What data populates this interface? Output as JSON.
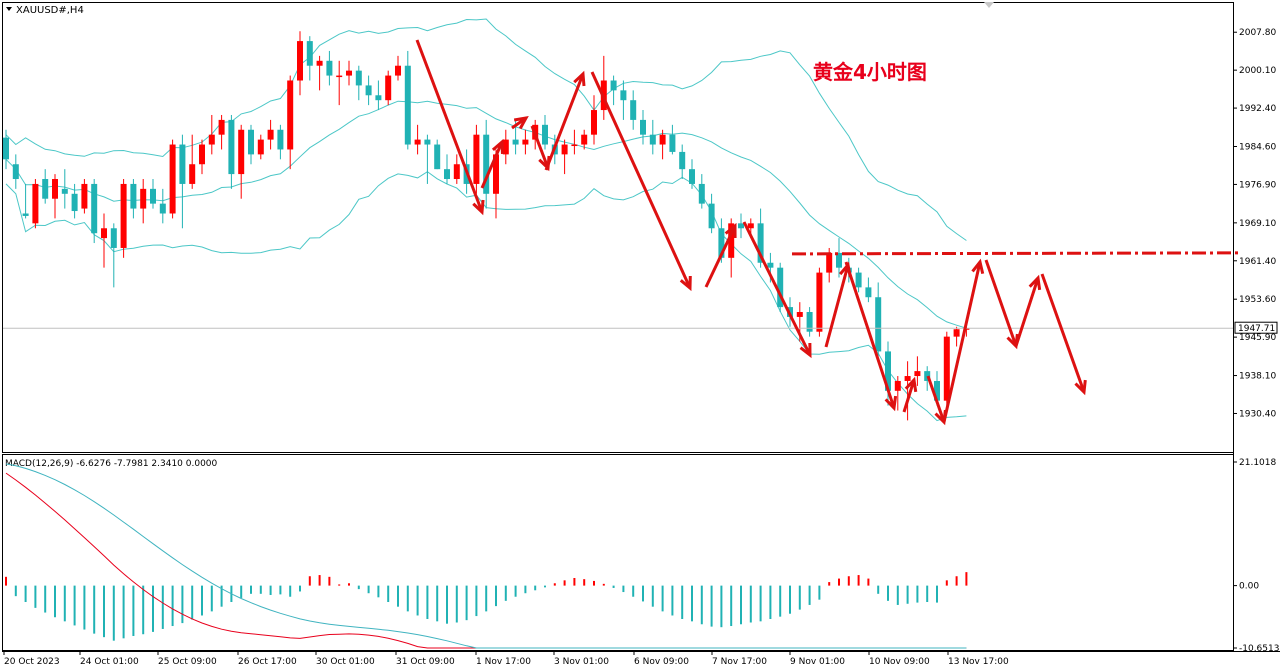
{
  "window": {
    "symbol_title": "XAUUSD#,H4",
    "annotation": "黄金4小时图",
    "current_price": "1947.71",
    "colors": {
      "bull": "#ff0000",
      "bear": "#20b2b4",
      "band": "#4cc7c7",
      "arrow": "#dd1111",
      "macd_signal": "#e8001c",
      "macd_main": "#40b4c0"
    }
  },
  "price_axis": {
    "ticks": [
      "2007.80",
      "2000.10",
      "1992.40",
      "1984.60",
      "1976.90",
      "1969.10",
      "1961.40",
      "1953.60",
      "1945.90",
      "1938.10",
      "1930.40"
    ],
    "ylim": [
      1924.0,
      2011.5
    ]
  },
  "time_axis": {
    "labels": [
      "20 Oct 2023",
      "24 Oct 01:00",
      "25 Oct 09:00",
      "26 Oct 17:00",
      "30 Oct 01:00",
      "31 Oct 09:00",
      "1 Nov 17:00",
      "3 Nov 01:00",
      "6 Nov 09:00",
      "7 Nov 17:00",
      "9 Nov 01:00",
      "10 Nov 09:00",
      "13 Nov 17:00"
    ]
  },
  "indicator": {
    "label": "MACD(12,26,9) -6.6276 -7.7981 2.3410 0.0000",
    "ticks": [
      "21.1018",
      "0.00",
      "-10.6513"
    ]
  },
  "chart_data": {
    "type": "candlestick",
    "title": "XAUUSD#,H4",
    "annotation": "黄金4小时图",
    "ylim": [
      1924.0,
      2011.5
    ],
    "resistance_level": 1962.8,
    "ohlc": [
      [
        1986.4,
        1988.0,
        1980.0,
        1982.0
      ],
      [
        1981.0,
        1983.0,
        1976.0,
        1978.0
      ],
      [
        1971.0,
        1977.0,
        1970.0,
        1970.5
      ],
      [
        1969.0,
        1978.0,
        1968.0,
        1977.0
      ],
      [
        1978.0,
        1980.0,
        1973.0,
        1974.0
      ],
      [
        1974.0,
        1979.0,
        1970.0,
        1978.0
      ],
      [
        1976.0,
        1980.0,
        1972.0,
        1975.0
      ],
      [
        1975.0,
        1977.0,
        1970.0,
        1971.5
      ],
      [
        1972.0,
        1978.0,
        1971.0,
        1977.0
      ],
      [
        1977.0,
        1978.0,
        1965.0,
        1967.0
      ],
      [
        1966.0,
        1971.0,
        1960.0,
        1968.0
      ],
      [
        1968.0,
        1969.0,
        1956.0,
        1964.0
      ],
      [
        1964.0,
        1978.0,
        1962.0,
        1977.0
      ],
      [
        1977.0,
        1978.0,
        1970.0,
        1972.0
      ],
      [
        1972.0,
        1978.0,
        1969.0,
        1976.0
      ],
      [
        1976.0,
        1978.0,
        1972.0,
        1973.0
      ],
      [
        1973.0,
        1976.0,
        1969.0,
        1971.0
      ],
      [
        1971.0,
        1986.0,
        1970.0,
        1985.0
      ],
      [
        1985.0,
        1987.0,
        1968.0,
        1977.0
      ],
      [
        1977.0,
        1987.0,
        1976.0,
        1981.0
      ],
      [
        1981.0,
        1986.0,
        1979.0,
        1985.0
      ],
      [
        1985.0,
        1991.0,
        1983.0,
        1987.0
      ],
      [
        1987.0,
        1991.0,
        1984.0,
        1990.0
      ],
      [
        1990.0,
        1991.0,
        1976.0,
        1979.0
      ],
      [
        1979.0,
        1989.0,
        1974.0,
        1988.0
      ],
      [
        1988.0,
        1989.0,
        1981.0,
        1983.0
      ],
      [
        1983.0,
        1987.0,
        1982.0,
        1986.0
      ],
      [
        1986.0,
        1990.0,
        1984.0,
        1988.0
      ],
      [
        1988.0,
        1989.0,
        1982.0,
        1984.0
      ],
      [
        1984.0,
        1999.0,
        1980.0,
        1998.0
      ],
      [
        1998.0,
        2008.0,
        1995.0,
        2006.0
      ],
      [
        2006.0,
        2007.0,
        1998.0,
        2001.0
      ],
      [
        2001.0,
        2003.0,
        1996.0,
        2002.0
      ],
      [
        2002.0,
        2004.0,
        1997.0,
        1999.0
      ],
      [
        1999.0,
        2002.0,
        1993.0,
        1999.0
      ],
      [
        1999.0,
        2002.0,
        1997.0,
        2000.0
      ],
      [
        2000.0,
        2001.0,
        1994.0,
        1997.0
      ],
      [
        1997.0,
        1999.0,
        1993.0,
        1995.0
      ],
      [
        1995.0,
        1998.0,
        1992.0,
        1994.0
      ],
      [
        1994.0,
        2000.0,
        1993.0,
        1999.0
      ],
      [
        1999.0,
        2003.0,
        1998.0,
        2001.0
      ],
      [
        2001.0,
        2004.0,
        1984.0,
        1985.0
      ],
      [
        1985.0,
        1989.0,
        1983.0,
        1986.0
      ],
      [
        1986.0,
        1987.0,
        1977.0,
        1985.0
      ],
      [
        1985.0,
        1986.0,
        1980.0,
        1980.0
      ],
      [
        1980.0,
        1983.0,
        1977.0,
        1978.0
      ],
      [
        1978.0,
        1983.0,
        1977.0,
        1981.0
      ],
      [
        1981.0,
        1984.0,
        1975.0,
        1977.0
      ],
      [
        1977.0,
        1989.0,
        1975.0,
        1987.0
      ],
      [
        1987.0,
        1990.0,
        1972.0,
        1975.0
      ],
      [
        1975.0,
        1984.0,
        1970.0,
        1983.0
      ],
      [
        1983.0,
        1988.0,
        1981.0,
        1986.0
      ],
      [
        1986.0,
        1990.0,
        1983.0,
        1985.0
      ],
      [
        1985.0,
        1988.0,
        1983.0,
        1986.0
      ],
      [
        1986.0,
        1990.0,
        1984.0,
        1989.0
      ],
      [
        1989.0,
        1991.0,
        1984.0,
        1985.0
      ],
      [
        1985.0,
        1987.0,
        1981.0,
        1983.0
      ],
      [
        1983.0,
        1986.0,
        1979.0,
        1985.0
      ],
      [
        1985.0,
        1988.0,
        1983.0,
        1985.0
      ],
      [
        1985.0,
        1988.0,
        1984.0,
        1987.0
      ],
      [
        1987.0,
        1995.0,
        1985.0,
        1992.0
      ],
      [
        1992.0,
        2003.0,
        1990.0,
        1998.0
      ],
      [
        1998.0,
        1999.0,
        1993.0,
        1996.0
      ],
      [
        1996.0,
        1998.0,
        1990.0,
        1994.0
      ],
      [
        1994.0,
        1996.0,
        1988.0,
        1990.0
      ],
      [
        1990.0,
        1992.0,
        1985.0,
        1987.0
      ],
      [
        1987.0,
        1990.0,
        1983.0,
        1985.0
      ],
      [
        1985.0,
        1988.0,
        1982.0,
        1987.0
      ],
      [
        1987.0,
        1989.0,
        1983.0,
        1983.5
      ],
      [
        1983.5,
        1985.0,
        1978.0,
        1980.0
      ],
      [
        1980.0,
        1982.0,
        1976.0,
        1977.0
      ],
      [
        1977.0,
        1979.0,
        1972.0,
        1973.0
      ],
      [
        1973.0,
        1975.0,
        1967.0,
        1968.0
      ],
      [
        1968.0,
        1970.0,
        1961.0,
        1962.0
      ],
      [
        1962.0,
        1970.0,
        1958.0,
        1969.0
      ],
      [
        1969.0,
        1971.0,
        1966.0,
        1968.0
      ],
      [
        1968.0,
        1970.0,
        1966.0,
        1969.0
      ],
      [
        1969.0,
        1972.0,
        1960.0,
        1961.0
      ],
      [
        1961.0,
        1963.0,
        1957.0,
        1960.0
      ],
      [
        1960.0,
        1961.0,
        1951.0,
        1952.0
      ],
      [
        1952.0,
        1954.0,
        1948.0,
        1950.0
      ],
      [
        1950.0,
        1953.0,
        1945.0,
        1951.0
      ],
      [
        1951.0,
        1952.0,
        1946.0,
        1947.0
      ],
      [
        1947.0,
        1960.0,
        1946.0,
        1959.0
      ],
      [
        1959.0,
        1964.0,
        1957.0,
        1963.0
      ],
      [
        1963.0,
        1966.0,
        1958.0,
        1960.0
      ],
      [
        1960.0,
        1962.0,
        1957.0,
        1959.0
      ],
      [
        1959.0,
        1960.0,
        1955.0,
        1956.0
      ],
      [
        1956.0,
        1958.0,
        1953.0,
        1954.0
      ],
      [
        1954.0,
        1957.0,
        1942.0,
        1943.0
      ],
      [
        1943.0,
        1945.0,
        1932.0,
        1935.0
      ],
      [
        1935.0,
        1938.0,
        1931.0,
        1937.0
      ],
      [
        1937.0,
        1941.0,
        1929.0,
        1938.0
      ],
      [
        1938.0,
        1942.0,
        1936.0,
        1939.0
      ],
      [
        1939.0,
        1940.0,
        1935.0,
        1937.0
      ],
      [
        1937.0,
        1939.0,
        1932.0,
        1933.0
      ],
      [
        1933.0,
        1947.0,
        1932.0,
        1946.0
      ],
      [
        1946.0,
        1948.0,
        1944.0,
        1947.5
      ],
      [
        1947.5,
        1948.0,
        1946.0,
        1947.7
      ]
    ],
    "macd": {
      "name": "MACD(12,26,9)",
      "histogram": [
        1.5,
        -1.8,
        -2.8,
        -3.8,
        -4.6,
        -5.4,
        -6.1,
        -6.8,
        -7.5,
        -8.2,
        -8.8,
        -9.4,
        -9.0,
        -8.6,
        -8.3,
        -7.9,
        -7.4,
        -6.9,
        -6.4,
        -5.8,
        -5.1,
        -4.4,
        -3.6,
        -2.8,
        -2.1,
        -1.4,
        -1.4,
        -1.6,
        -1.5,
        -1.9,
        -1.0,
        1.6,
        1.8,
        1.5,
        0.2,
        0.4,
        -0.6,
        -1.3,
        -2.0,
        -2.8,
        -3.6,
        -4.4,
        -5.1,
        -5.7,
        -6.1,
        -6.5,
        -6.3,
        -5.9,
        -5.2,
        -4.4,
        -3.5,
        -2.6,
        -1.9,
        -1.3,
        -0.8,
        -0.3,
        0.4,
        0.9,
        1.3,
        1.1,
        0.8,
        0.3,
        -0.4,
        -1.1,
        -1.9,
        -2.7,
        -3.6,
        -4.4,
        -5.1,
        -5.7,
        -6.1,
        -6.6,
        -7.0,
        -7.1,
        -6.9,
        -6.6,
        -6.3,
        -6.1,
        -5.7,
        -5.3,
        -4.8,
        -4.1,
        -3.3,
        -2.4,
        0.6,
        1.2,
        1.6,
        1.8,
        1.2,
        -1.4,
        -2.6,
        -3.3,
        -3.1,
        -2.9,
        -2.8,
        -2.9,
        0.9,
        1.6,
        2.3
      ]
    }
  }
}
